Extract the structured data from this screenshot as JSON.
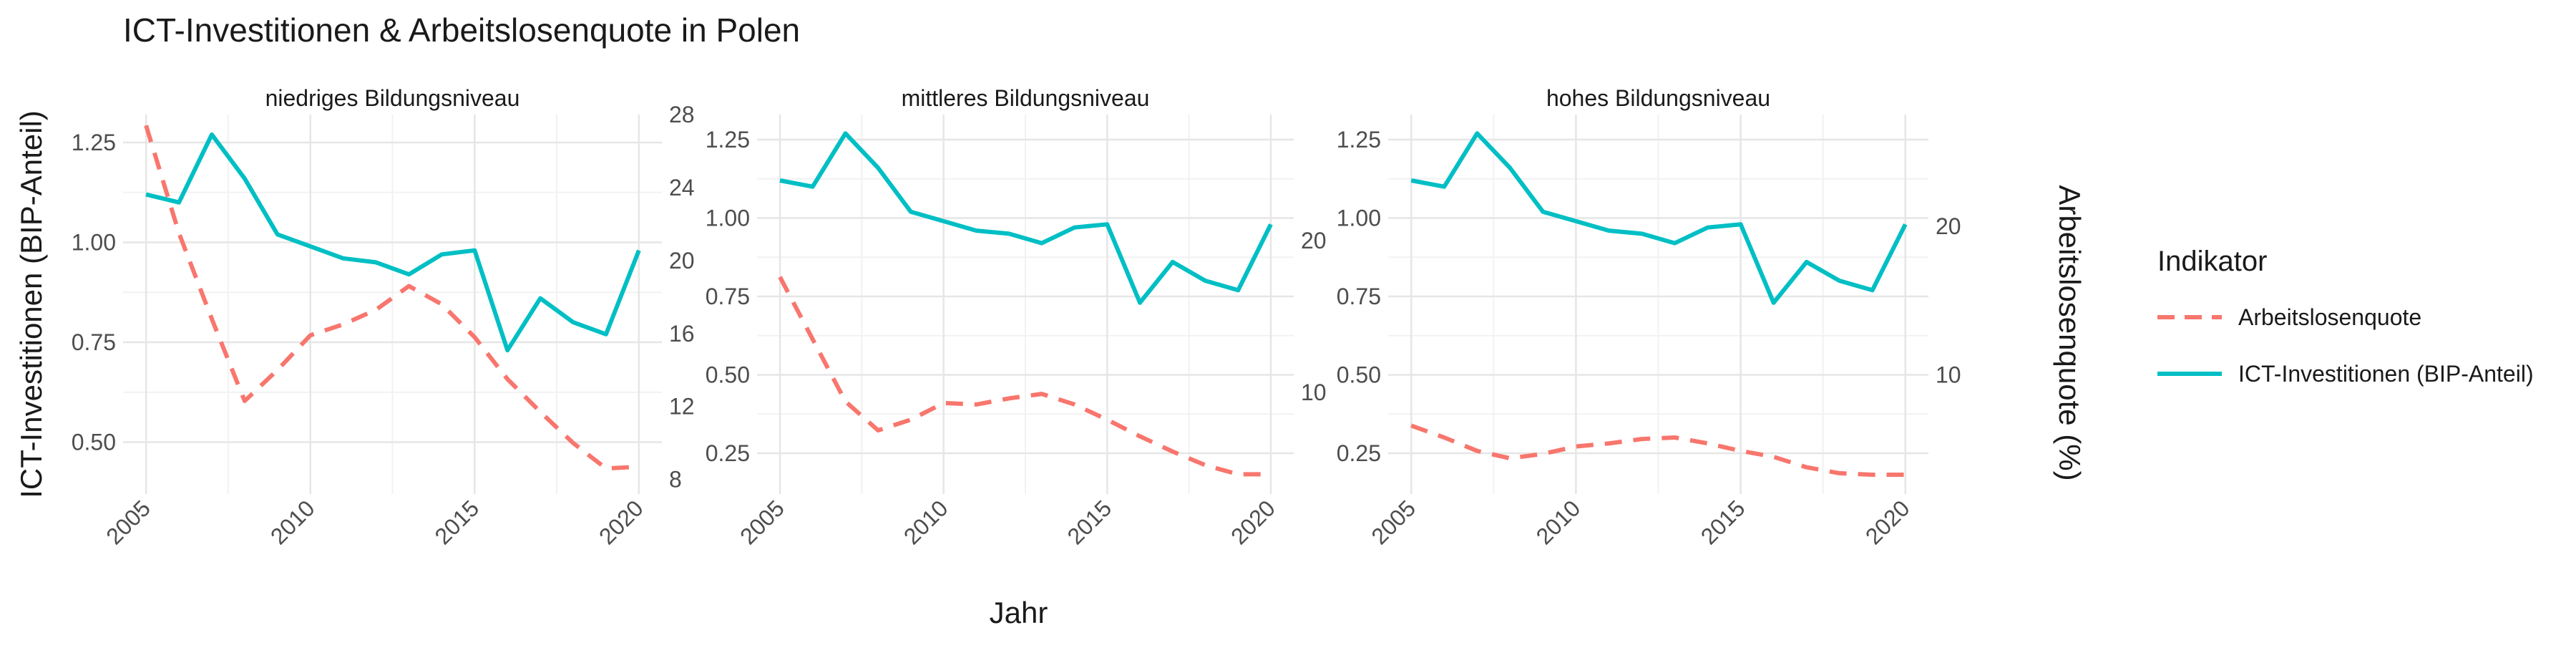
{
  "chart_data": {
    "type": "line",
    "title": "ICT-Investitionen & Arbeitslosenquote in Polen",
    "xlabel": "Jahr",
    "ylabel_left": "ICT-Investitionen (BIP-Anteil)",
    "ylabel_right": "Arbeitslosenquote (%)",
    "x": [
      2005,
      2006,
      2007,
      2008,
      2009,
      2010,
      2011,
      2012,
      2013,
      2014,
      2015,
      2016,
      2017,
      2018,
      2019,
      2020
    ],
    "x_ticks": [
      "2005",
      "2010",
      "2015",
      "2020"
    ],
    "grid": true,
    "legend": {
      "title": "Indikator",
      "position": "right",
      "entries": [
        {
          "label": "Arbeitslosenquote",
          "color": "#F8766D",
          "style": "dashed"
        },
        {
          "label": "ICT-Investitionen (BIP-Anteil)",
          "color": "#00BFC4",
          "style": "solid"
        }
      ]
    },
    "panels": [
      {
        "title": "niedriges Bildungsniveau",
        "ylim_left": [
          0.37,
          1.32
        ],
        "yticks_left": [
          "0.50",
          "0.75",
          "1.00",
          "1.25"
        ],
        "ylim_right": [
          7.2,
          28.0
        ],
        "yticks_right": [
          "8",
          "12",
          "16",
          "20",
          "24",
          "28"
        ],
        "series": [
          {
            "name": "ICT-Investitionen (BIP-Anteil)",
            "axis": "left",
            "values": [
              1.12,
              1.1,
              1.27,
              1.16,
              1.02,
              0.99,
              0.96,
              0.95,
              0.92,
              0.97,
              0.98,
              0.73,
              0.86,
              0.8,
              0.77,
              0.98
            ]
          },
          {
            "name": "Arbeitslosenquote",
            "axis": "right",
            "values": [
              27.4,
              21.5,
              16.8,
              12.3,
              14.0,
              15.9,
              16.5,
              17.3,
              18.6,
              17.6,
              15.8,
              13.5,
              11.7,
              10.0,
              8.6,
              8.7
            ]
          }
        ]
      },
      {
        "title": "mittleres Bildungsniveau",
        "ylim_left": [
          0.12,
          1.33
        ],
        "yticks_left": [
          "0.25",
          "0.50",
          "0.75",
          "1.00",
          "1.25"
        ],
        "ylim_right": [
          3.3,
          28.3
        ],
        "yticks_right": [
          "10",
          "20"
        ],
        "series": [
          {
            "name": "ICT-Investitionen (BIP-Anteil)",
            "axis": "left",
            "values": [
              1.12,
              1.1,
              1.27,
              1.16,
              1.02,
              0.99,
              0.96,
              0.95,
              0.92,
              0.97,
              0.98,
              0.73,
              0.86,
              0.8,
              0.77,
              0.98
            ]
          },
          {
            "name": "Arbeitslosenquote",
            "axis": "right",
            "values": [
              17.6,
              13.5,
              9.4,
              7.5,
              8.2,
              9.3,
              9.2,
              9.6,
              9.9,
              9.2,
              8.2,
              7.1,
              6.1,
              5.2,
              4.6,
              4.6
            ]
          }
        ]
      },
      {
        "title": "hohes Bildungsniveau",
        "ylim_left": [
          0.12,
          1.33
        ],
        "yticks_left": [
          "0.25",
          "0.50",
          "0.75",
          "1.00",
          "1.25"
        ],
        "ylim_right": [
          2.0,
          27.5
        ],
        "yticks_right": [
          "10",
          "20"
        ],
        "series": [
          {
            "name": "ICT-Investitionen (BIP-Anteil)",
            "axis": "left",
            "values": [
              1.12,
              1.1,
              1.27,
              1.16,
              1.02,
              0.99,
              0.96,
              0.95,
              0.92,
              0.97,
              0.98,
              0.73,
              0.86,
              0.8,
              0.77,
              0.98
            ]
          },
          {
            "name": "Arbeitslosenquote",
            "axis": "right",
            "values": [
              6.6,
              5.8,
              4.9,
              4.4,
              4.7,
              5.2,
              5.4,
              5.7,
              5.8,
              5.4,
              4.9,
              4.5,
              3.8,
              3.4,
              3.3,
              3.3
            ]
          }
        ]
      }
    ]
  }
}
